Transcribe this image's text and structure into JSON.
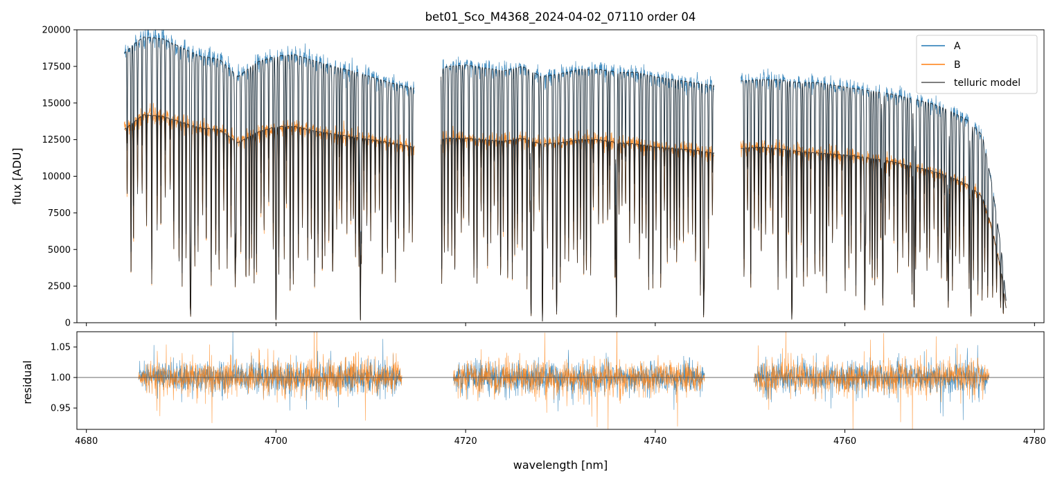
{
  "chart_data": [
    {
      "type": "line",
      "panel": "top",
      "title": "bet01_Sco_M4368_2024-04-02_07110  order 04",
      "xlabel": "",
      "ylabel": "flux [ADU]",
      "xlim": [
        4679,
        4781
      ],
      "ylim": [
        0,
        20000
      ],
      "yticks": [
        0,
        2500,
        5000,
        7500,
        10000,
        12500,
        15000,
        17500,
        20000
      ],
      "ytick_labels": [
        "0",
        "2500",
        "5000",
        "7500",
        "10000",
        "12500",
        "15000",
        "17500",
        "20000"
      ],
      "xticks": [
        4680,
        4700,
        4720,
        4740,
        4760,
        4780
      ],
      "legend": {
        "position": "top-right",
        "entries": [
          {
            "label": "A",
            "color": "#1f77b4"
          },
          {
            "label": "B",
            "color": "#ff7f0e"
          },
          {
            "label": "telluric model",
            "color": "#555555"
          }
        ]
      },
      "continuum": {
        "A": {
          "x": [
            4684,
            4685,
            4686,
            4688,
            4690,
            4692,
            4694,
            4696,
            4698,
            4700,
            4702,
            4704,
            4706,
            4708,
            4710,
            4712,
            4714.5,
            4718,
            4720,
            4722,
            4724,
            4726,
            4728,
            4730,
            4732,
            4734,
            4736,
            4738,
            4740,
            4742,
            4744,
            4746,
            4749,
            4751,
            4753,
            4755,
            4757,
            4759,
            4761,
            4763,
            4765,
            4767,
            4769,
            4771,
            4773,
            4774.5,
            4775.5,
            4776.5,
            4777
          ],
          "y": [
            18400,
            19000,
            19500,
            19400,
            18800,
            18200,
            18000,
            16800,
            17800,
            18200,
            18300,
            17900,
            17500,
            17200,
            16800,
            16400,
            16000,
            17500,
            17600,
            17400,
            17200,
            17500,
            16800,
            17000,
            17300,
            17300,
            17100,
            17100,
            16800,
            16600,
            16400,
            16200,
            16500,
            16600,
            16600,
            16400,
            16400,
            16200,
            16000,
            15800,
            15600,
            15300,
            15000,
            14500,
            13800,
            12800,
            9500,
            5000,
            1500
          ]
        },
        "B": {
          "x": [
            4684,
            4685,
            4686,
            4688,
            4690,
            4692,
            4694,
            4696,
            4698,
            4700,
            4702,
            4704,
            4706,
            4708,
            4710,
            4712,
            4714.5,
            4718,
            4720,
            4722,
            4724,
            4726,
            4728,
            4730,
            4732,
            4734,
            4736,
            4738,
            4740,
            4742,
            4744,
            4746,
            4749,
            4751,
            4753,
            4755,
            4757,
            4759,
            4761,
            4763,
            4765,
            4767,
            4769,
            4771,
            4773,
            4774.5,
            4775.5,
            4776.5,
            4777
          ],
          "y": [
            13200,
            13700,
            14200,
            14100,
            13700,
            13300,
            13200,
            12300,
            13000,
            13400,
            13400,
            13100,
            12900,
            12700,
            12500,
            12300,
            12000,
            12600,
            12600,
            12500,
            12400,
            12600,
            12200,
            12300,
            12500,
            12500,
            12300,
            12200,
            12000,
            11900,
            11800,
            11600,
            11900,
            12000,
            11900,
            11700,
            11600,
            11500,
            11400,
            11200,
            11000,
            10700,
            10400,
            10000,
            9400,
            8600,
            6500,
            3500,
            1000
          ]
        }
      },
      "absorption_lines_nm": [
        [
          4691.0,
          17500,
          0.96
        ],
        [
          4695.7,
          13000,
          0.8
        ],
        [
          4700.0,
          4000,
          0.99
        ],
        [
          4706.0,
          10500,
          0.6
        ],
        [
          4708.9,
          4500,
          0.99
        ],
        [
          4726.9,
          3500,
          0.98
        ],
        [
          4728.1,
          3000,
          0.99
        ],
        [
          4729.6,
          3000,
          0.9
        ],
        [
          4735.9,
          4200,
          0.97
        ],
        [
          4745.1,
          3000,
          0.97
        ],
        [
          4754.4,
          3200,
          0.98
        ],
        [
          4762.1,
          3000,
          0.93
        ],
        [
          4764.0,
          3000,
          0.9
        ],
        [
          4767.3,
          3000,
          0.93
        ],
        [
          4770.9,
          3000,
          0.9
        ],
        [
          4773.3,
          3500,
          0.96
        ]
      ],
      "gaps_nm": [
        [
          4714.6,
          4717.4
        ],
        [
          4746.2,
          4749.0
        ]
      ]
    },
    {
      "type": "line",
      "panel": "bottom",
      "xlabel": "wavelength [nm]",
      "ylabel": "residual",
      "xlim": [
        4679,
        4781
      ],
      "ylim": [
        0.915,
        1.075
      ],
      "yticks": [
        0.95,
        1.0,
        1.05
      ],
      "ytick_labels": [
        "0.95",
        "1.00",
        "1.05"
      ],
      "xticks": [
        4680,
        4700,
        4720,
        4740,
        4760,
        4780
      ],
      "xtick_labels": [
        "4680",
        "4700",
        "4720",
        "4740",
        "4760",
        "4780"
      ],
      "reference_line": 1.0,
      "segments_nm": [
        [
          4685.5,
          4713.3
        ],
        [
          4718.7,
          4745.2
        ],
        [
          4750.4,
          4775.2
        ]
      ],
      "series": [
        {
          "name": "A",
          "color": "#1f77b4",
          "scatter": 0.022
        },
        {
          "name": "B",
          "color": "#ff7f0e",
          "scatter": 0.026
        }
      ]
    }
  ]
}
